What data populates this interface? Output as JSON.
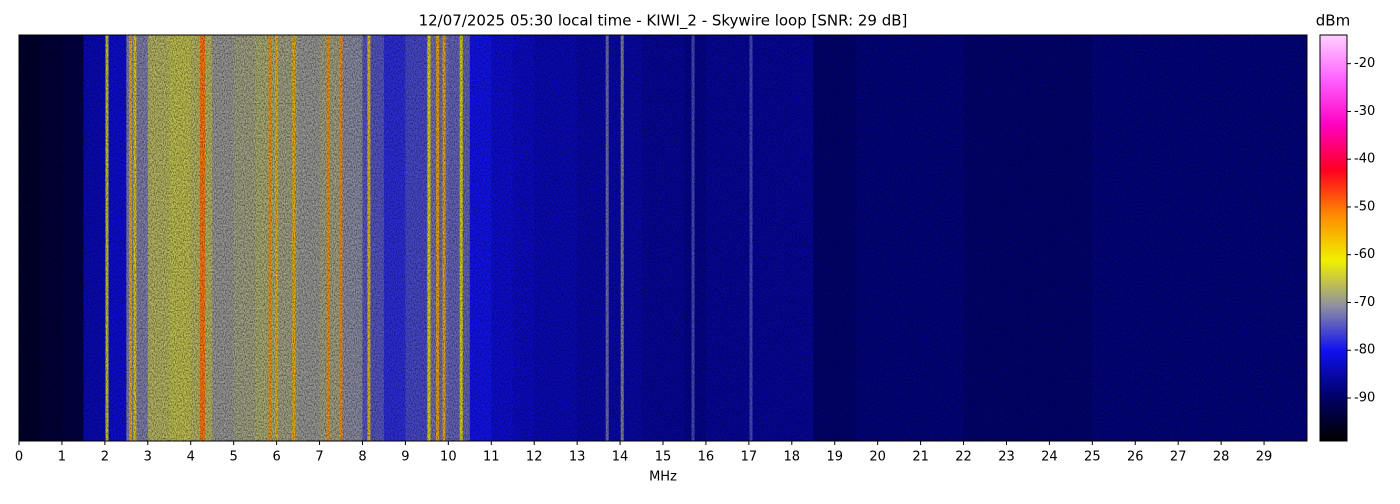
{
  "chart_data": {
    "type": "heatmap",
    "title": "12/07/2025 05:30 local time - KIWI_2 - Skywire loop [SNR: 29 dB]",
    "xlabel": "MHz",
    "colorbar_label": "dBm",
    "xlim": [
      0,
      30
    ],
    "xticks": [
      0,
      1,
      2,
      3,
      4,
      5,
      6,
      7,
      8,
      9,
      10,
      11,
      12,
      13,
      14,
      15,
      16,
      17,
      18,
      19,
      20,
      21,
      22,
      23,
      24,
      25,
      26,
      27,
      28,
      29
    ],
    "x": [
      0,
      0.5,
      1,
      1.5,
      2,
      2.5,
      3,
      3.5,
      4,
      4.5,
      5,
      5.5,
      6,
      6.5,
      7,
      7.5,
      8,
      8.5,
      9,
      9.5,
      10,
      10.5,
      11,
      11.5,
      12,
      12.5,
      13,
      13.5,
      14,
      14.5,
      15,
      15.5,
      16,
      16.5,
      17,
      17.5,
      18,
      18.5,
      19,
      19.5,
      20,
      20.5,
      21,
      21.5,
      22,
      22.5,
      23,
      23.5,
      24,
      24.5,
      25,
      25.5,
      26,
      26.5,
      27,
      27.5,
      28,
      28.5,
      29,
      29.5
    ],
    "values": [
      -95,
      -94,
      -93,
      -84,
      -82,
      -72,
      -67,
      -66,
      -67,
      -70,
      -69,
      -68,
      -69,
      -70,
      -69,
      -71,
      -75,
      -78,
      -76,
      -73,
      -74,
      -80,
      -82,
      -83,
      -84,
      -84,
      -85,
      -85,
      -85,
      -86,
      -86,
      -87,
      -86,
      -86,
      -86,
      -86,
      -86,
      -89,
      -89,
      -88,
      -88,
      -88,
      -88,
      -88,
      -89,
      -89,
      -89,
      -89,
      -89,
      -89,
      -88,
      -88,
      -88,
      -88,
      -88,
      -88,
      -88,
      -88,
      -88,
      -88
    ],
    "signals": {
      "x": [
        2.05,
        2.6,
        2.7,
        4.25,
        4.3,
        5.85,
        6.0,
        6.4,
        7.2,
        7.5,
        8.15,
        9.55,
        9.75,
        9.9,
        10.3,
        13.7,
        14.05,
        15.7,
        17.05
      ],
      "values": [
        -62,
        -55,
        -58,
        -50,
        -50,
        -52,
        -55,
        -55,
        -52,
        -52,
        -58,
        -60,
        -55,
        -55,
        -60,
        -72,
        -70,
        -75,
        -75
      ]
    },
    "clim": [
      -99,
      -14
    ],
    "cticks": [
      -20,
      -30,
      -40,
      -50,
      -60,
      -70,
      -80,
      -90
    ],
    "colormap": [
      "#000000",
      "#00006a",
      "#1010f0",
      "#9090a0",
      "#f0f000",
      "#ff8c00",
      "#ff0020",
      "#ff00c0",
      "#ff60ff",
      "#ffd0ff"
    ]
  }
}
